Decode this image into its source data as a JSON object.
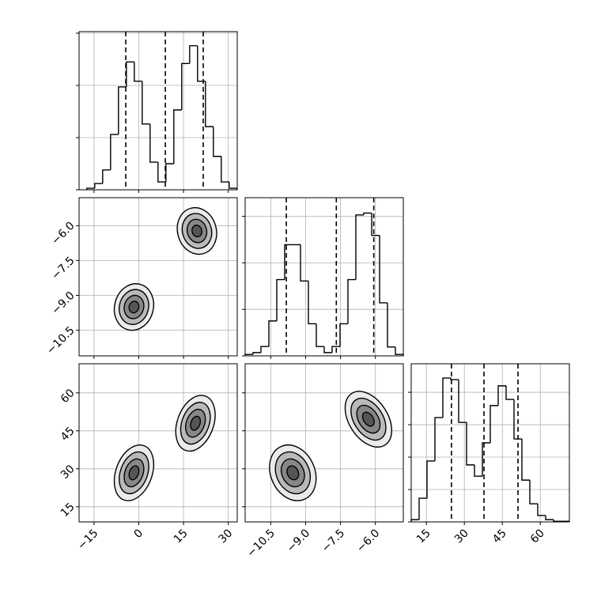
{
  "chart_data": {
    "type": "corner",
    "grid": true,
    "hist_ytick_labels": false,
    "color": "#000000",
    "levels": [
      0.5,
      1,
      1.5,
      2
    ],
    "params": [
      {
        "xlim": [
          -20,
          33
        ],
        "ticks": [
          {
            "value": -15,
            "label": "−15"
          },
          0,
          15,
          30
        ],
        "bins": [
          -17.4,
          -14.75,
          -12.1,
          -9.45,
          -6.8,
          -4.15,
          -1.5,
          1.15,
          3.8,
          6.45,
          9.1,
          11.75,
          14.4,
          17.05,
          19.7,
          22.35,
          25,
          27.65,
          30.3,
          32.95
        ],
        "counts": [
          3,
          12,
          38,
          106,
          197,
          245,
          208,
          126,
          53,
          15,
          50,
          153,
          242,
          276,
          208,
          121,
          64,
          15,
          3
        ],
        "hist_ylim": [
          0,
          303
        ],
        "hist_yticks": [
          0,
          100,
          200,
          300
        ],
        "quantiles": [
          -4.35,
          8.9,
          21.6
        ]
      },
      {
        "xlim": [
          -11.6,
          -4.8
        ],
        "ticks": [
          {
            "value": -10.5,
            "label": "−10.5"
          },
          {
            "value": -9,
            "label": "−9.0"
          },
          {
            "value": -7.5,
            "label": "−7.5"
          },
          {
            "value": -6,
            "label": "−6.0"
          }
        ],
        "bins": [
          -11.6,
          -11.26,
          -10.92,
          -10.58,
          -10.24,
          -9.9,
          -9.56,
          -9.22,
          -8.88,
          -8.54,
          -8.2,
          -7.86,
          -7.52,
          -7.18,
          -6.84,
          -6.5,
          -6.16,
          -5.82,
          -5.48,
          -5.14,
          -4.8
        ],
        "counts": [
          3,
          7,
          20,
          75,
          164,
          239,
          239,
          161,
          69,
          20,
          7,
          20,
          69,
          164,
          303,
          307,
          259,
          114,
          19,
          3
        ],
        "hist_ylim": [
          0,
          340
        ],
        "hist_yticks": [
          0,
          100,
          200,
          300
        ],
        "quantiles": [
          -9.83,
          -7.68,
          -6.07
        ]
      },
      {
        "xlim": [
          9,
          71.5
        ],
        "ticks": [
          15,
          30,
          45,
          60
        ],
        "bins": [
          9,
          12.125,
          15.25,
          18.375,
          21.5,
          24.625,
          27.75,
          30.875,
          34,
          37.125,
          40.25,
          43.375,
          46.5,
          49.625,
          52.75,
          55.875,
          59,
          62.125,
          65.25,
          68.375,
          71.5
        ],
        "counts": [
          7,
          73,
          188,
          322,
          444,
          439,
          307,
          176,
          141,
          244,
          359,
          420,
          378,
          256,
          129,
          56,
          20,
          7,
          2,
          2
        ],
        "hist_ylim": [
          0,
          488
        ],
        "hist_yticks": [
          0,
          100,
          200,
          300,
          400
        ],
        "quantiles": [
          24.9,
          37.75,
          51.2
        ]
      }
    ],
    "pairs": [
      {
        "x": 0,
        "y": 1,
        "blobs": [
          {
            "x": -1.6,
            "y": -9.5,
            "sx": 3.3,
            "sy": 0.5,
            "rho": 0.1
          },
          {
            "x": 19.5,
            "y": -6.23,
            "sx": 3.3,
            "sy": 0.5,
            "rho": -0.1
          }
        ]
      },
      {
        "x": 0,
        "y": 2,
        "blobs": [
          {
            "x": -1.6,
            "y": 28.4,
            "sx": 3.3,
            "sy": 5.5,
            "rho": 0.3
          },
          {
            "x": 19,
            "y": 48,
            "sx": 3.3,
            "sy": 5.5,
            "rho": 0.3
          }
        ]
      },
      {
        "x": 1,
        "y": 2,
        "blobs": [
          {
            "x": -9.55,
            "y": 28.4,
            "sx": 0.5,
            "sy": 5.5,
            "rho": -0.2
          },
          {
            "x": -6.3,
            "y": 49.6,
            "sx": 0.5,
            "sy": 5.5,
            "rho": -0.4
          }
        ]
      }
    ]
  }
}
